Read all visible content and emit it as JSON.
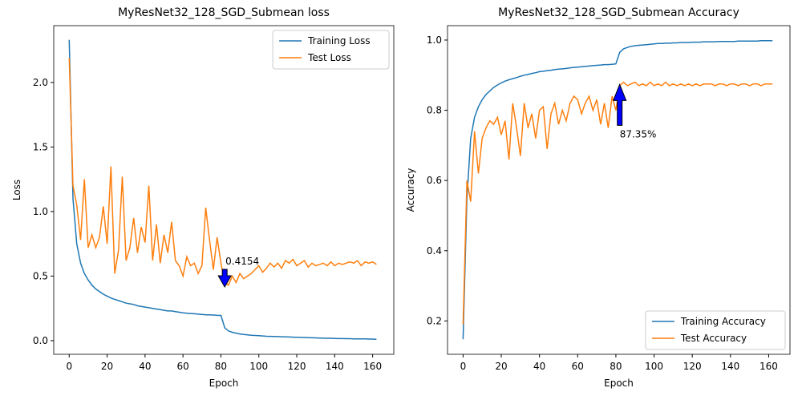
{
  "chart_data": [
    {
      "type": "line",
      "title": "MyResNet32_128_SGD_Submean loss",
      "xlabel": "Epoch",
      "ylabel": "Loss",
      "x": [
        0,
        2,
        4,
        6,
        8,
        10,
        12,
        14,
        16,
        18,
        20,
        22,
        24,
        26,
        28,
        30,
        32,
        34,
        36,
        38,
        40,
        42,
        44,
        46,
        48,
        50,
        52,
        54,
        56,
        58,
        60,
        62,
        64,
        66,
        68,
        70,
        72,
        74,
        76,
        78,
        80,
        82,
        84,
        86,
        88,
        90,
        92,
        94,
        96,
        98,
        100,
        102,
        104,
        106,
        108,
        110,
        112,
        114,
        116,
        118,
        120,
        122,
        124,
        126,
        128,
        130,
        132,
        134,
        136,
        138,
        140,
        142,
        144,
        146,
        148,
        150,
        152,
        154,
        156,
        158,
        160,
        162
      ],
      "series": [
        {
          "name": "Training Loss",
          "color": "#1f77b4",
          "values": [
            2.33,
            1.1,
            0.75,
            0.6,
            0.52,
            0.47,
            0.43,
            0.4,
            0.38,
            0.36,
            0.345,
            0.33,
            0.32,
            0.31,
            0.3,
            0.29,
            0.285,
            0.28,
            0.27,
            0.265,
            0.26,
            0.255,
            0.25,
            0.245,
            0.24,
            0.235,
            0.23,
            0.23,
            0.225,
            0.22,
            0.215,
            0.212,
            0.21,
            0.208,
            0.205,
            0.203,
            0.2,
            0.2,
            0.198,
            0.196,
            0.195,
            0.1,
            0.075,
            0.065,
            0.058,
            0.052,
            0.048,
            0.045,
            0.042,
            0.04,
            0.038,
            0.036,
            0.034,
            0.033,
            0.032,
            0.031,
            0.03,
            0.029,
            0.028,
            0.027,
            0.026,
            0.025,
            0.024,
            0.023,
            0.022,
            0.021,
            0.02,
            0.019,
            0.018,
            0.018,
            0.017,
            0.016,
            0.016,
            0.015,
            0.015,
            0.014,
            0.014,
            0.013,
            0.013,
            0.012,
            0.012,
            0.011
          ]
        },
        {
          "name": "Test Loss",
          "color": "#ff7f0e",
          "values": [
            2.19,
            1.2,
            1.05,
            0.78,
            1.25,
            0.72,
            0.82,
            0.72,
            0.8,
            1.04,
            0.75,
            1.35,
            0.52,
            0.7,
            1.27,
            0.62,
            0.72,
            0.95,
            0.68,
            0.88,
            0.76,
            1.2,
            0.62,
            0.9,
            0.6,
            0.82,
            0.68,
            0.92,
            0.62,
            0.58,
            0.5,
            0.65,
            0.58,
            0.6,
            0.52,
            0.58,
            1.03,
            0.78,
            0.55,
            0.8,
            0.6,
            0.45,
            0.43,
            0.5,
            0.45,
            0.52,
            0.48,
            0.5,
            0.52,
            0.55,
            0.58,
            0.53,
            0.56,
            0.6,
            0.57,
            0.6,
            0.56,
            0.62,
            0.6,
            0.63,
            0.58,
            0.6,
            0.62,
            0.57,
            0.6,
            0.58,
            0.59,
            0.6,
            0.58,
            0.61,
            0.58,
            0.6,
            0.59,
            0.6,
            0.61,
            0.6,
            0.62,
            0.58,
            0.61,
            0.6,
            0.61,
            0.59
          ]
        }
      ],
      "xlim": [
        -8.15,
        171.15
      ],
      "ylim": [
        -0.106,
        2.44
      ],
      "xticks": [
        0,
        20,
        40,
        60,
        80,
        100,
        120,
        140,
        160
      ],
      "yticks": [
        {
          "value": 0,
          "label": "0.0"
        },
        0.5,
        {
          "value": 1,
          "label": "1.0"
        },
        1.5,
        {
          "value": 2,
          "label": "2.0"
        }
      ],
      "legend": "upper right",
      "annotation": {
        "label": "0.4154",
        "x": 82,
        "y": 0.4154,
        "arrow": "down"
      }
    },
    {
      "type": "line",
      "title": "MyResNet32_128_SGD_Submean Accuracy",
      "xlabel": "Epoch",
      "ylabel": "Accuracy",
      "x": [
        0,
        2,
        4,
        6,
        8,
        10,
        12,
        14,
        16,
        18,
        20,
        22,
        24,
        26,
        28,
        30,
        32,
        34,
        36,
        38,
        40,
        42,
        44,
        46,
        48,
        50,
        52,
        54,
        56,
        58,
        60,
        62,
        64,
        66,
        68,
        70,
        72,
        74,
        76,
        78,
        80,
        82,
        84,
        86,
        88,
        90,
        92,
        94,
        96,
        98,
        100,
        102,
        104,
        106,
        108,
        110,
        112,
        114,
        116,
        118,
        120,
        122,
        124,
        126,
        128,
        130,
        132,
        134,
        136,
        138,
        140,
        142,
        144,
        146,
        148,
        150,
        152,
        154,
        156,
        158,
        160,
        162
      ],
      "series": [
        {
          "name": "Training Accuracy",
          "color": "#1f77b4",
          "values": [
            0.148,
            0.55,
            0.72,
            0.78,
            0.81,
            0.83,
            0.845,
            0.855,
            0.865,
            0.872,
            0.878,
            0.883,
            0.887,
            0.89,
            0.893,
            0.897,
            0.9,
            0.902,
            0.905,
            0.907,
            0.91,
            0.911,
            0.913,
            0.914,
            0.916,
            0.917,
            0.918,
            0.919,
            0.921,
            0.922,
            0.923,
            0.924,
            0.925,
            0.926,
            0.927,
            0.928,
            0.929,
            0.93,
            0.93,
            0.931,
            0.932,
            0.965,
            0.975,
            0.979,
            0.982,
            0.984,
            0.985,
            0.986,
            0.987,
            0.988,
            0.989,
            0.99,
            0.99,
            0.991,
            0.991,
            0.992,
            0.992,
            0.993,
            0.993,
            0.993,
            0.994,
            0.994,
            0.994,
            0.995,
            0.995,
            0.995,
            0.995,
            0.996,
            0.996,
            0.996,
            0.996,
            0.996,
            0.997,
            0.997,
            0.997,
            0.997,
            0.997,
            0.997,
            0.998,
            0.998,
            0.998,
            0.998
          ]
        },
        {
          "name": "Test Accuracy",
          "color": "#ff7f0e",
          "values": [
            0.19,
            0.6,
            0.54,
            0.74,
            0.62,
            0.72,
            0.75,
            0.77,
            0.76,
            0.78,
            0.73,
            0.77,
            0.66,
            0.82,
            0.75,
            0.67,
            0.82,
            0.75,
            0.79,
            0.72,
            0.8,
            0.81,
            0.69,
            0.79,
            0.82,
            0.76,
            0.8,
            0.77,
            0.82,
            0.84,
            0.83,
            0.79,
            0.82,
            0.84,
            0.8,
            0.83,
            0.76,
            0.82,
            0.75,
            0.84,
            0.8,
            0.87,
            0.88,
            0.87,
            0.875,
            0.88,
            0.87,
            0.875,
            0.87,
            0.88,
            0.87,
            0.875,
            0.87,
            0.88,
            0.87,
            0.875,
            0.87,
            0.875,
            0.87,
            0.875,
            0.87,
            0.875,
            0.87,
            0.875,
            0.875,
            0.875,
            0.87,
            0.875,
            0.875,
            0.87,
            0.875,
            0.875,
            0.87,
            0.875,
            0.875,
            0.87,
            0.875,
            0.875,
            0.87,
            0.875,
            0.875,
            0.875
          ]
        }
      ],
      "xlim": [
        -8.15,
        171.15
      ],
      "ylim": [
        0.105,
        1.041
      ],
      "xticks": [
        0,
        20,
        40,
        60,
        80,
        100,
        120,
        140,
        160
      ],
      "yticks": [
        0.2,
        0.4,
        0.6,
        0.8,
        {
          "value": 1,
          "label": "1.0"
        }
      ],
      "legend": "lower right",
      "annotation": {
        "label": "87.35%",
        "x": 82,
        "y": 0.8735,
        "arrow": "up"
      }
    }
  ]
}
